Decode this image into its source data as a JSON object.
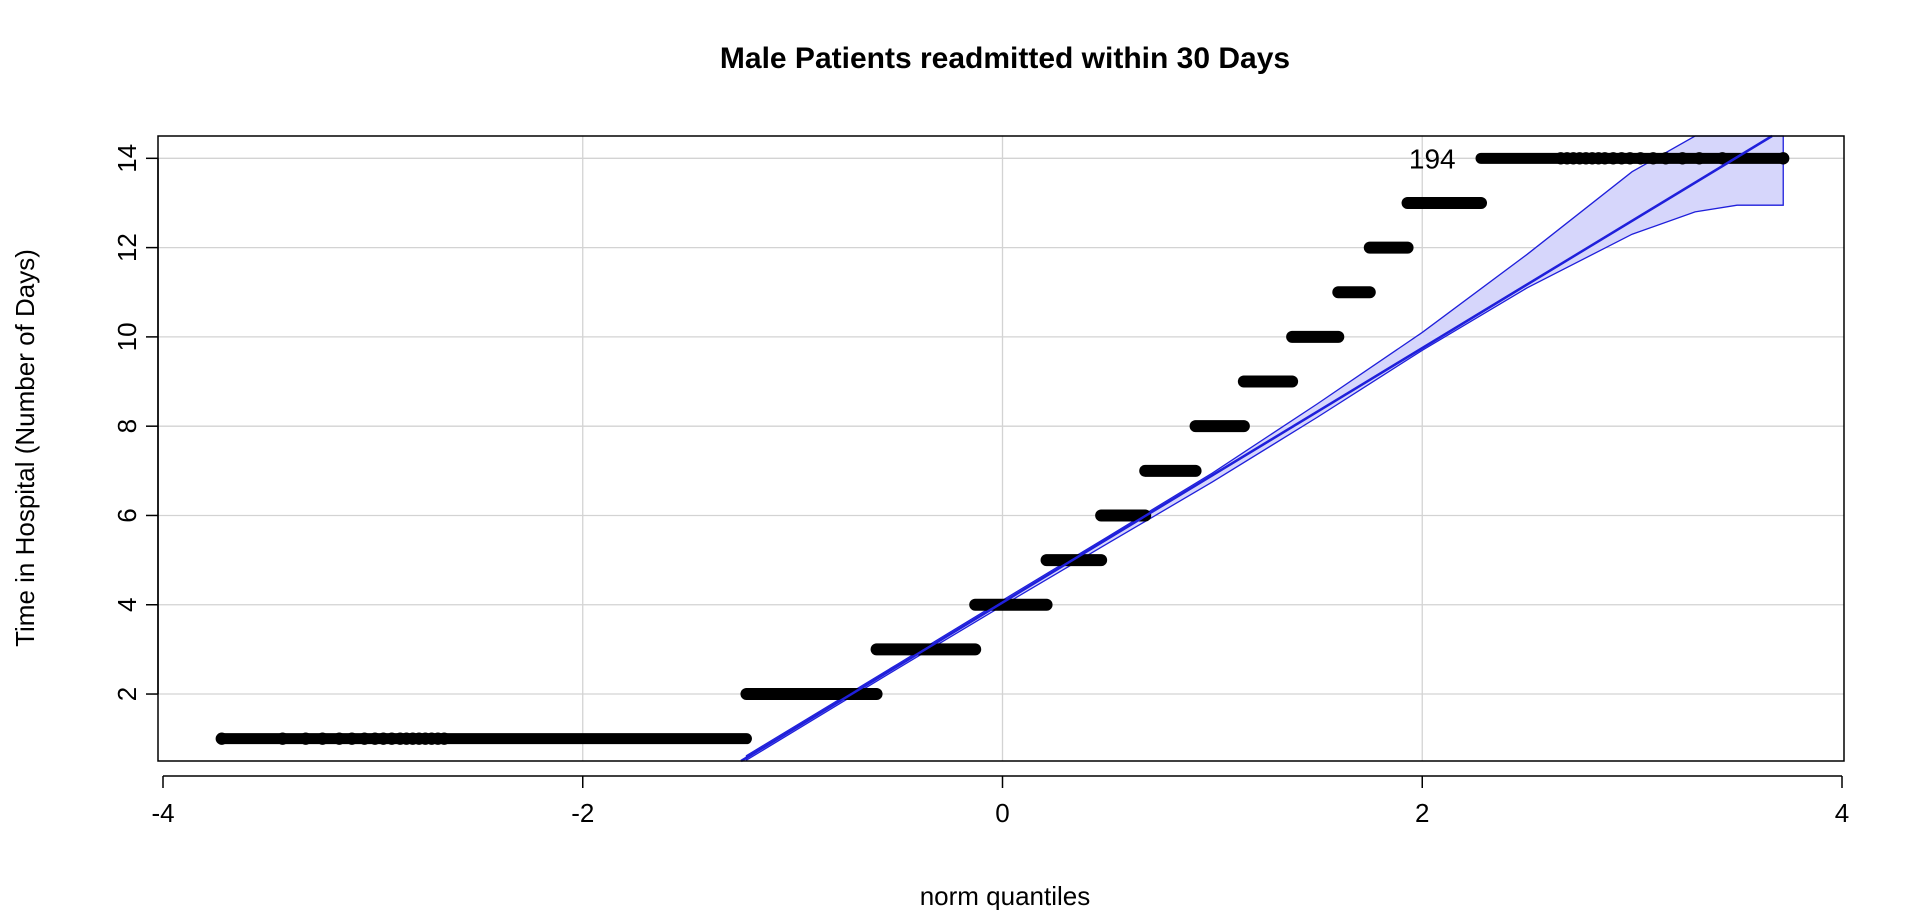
{
  "chart_data": {
    "type": "scatter",
    "subtype": "qq-plot",
    "title": "Male Patients readmitted within 30 Days",
    "xlabel": "norm quantiles",
    "ylabel": "Time in Hospital (Number of Days)",
    "xlim": [
      -4,
      4
    ],
    "ylim": [
      0.5,
      14.5
    ],
    "xticks": [
      -4,
      -2,
      0,
      2,
      4
    ],
    "yticks": [
      2,
      4,
      6,
      8,
      10,
      12,
      14
    ],
    "grid": true,
    "steps": [
      {
        "y": 1,
        "x_from": -3.72,
        "x_to": -1.22
      },
      {
        "y": 2,
        "x_from": -1.22,
        "x_to": -0.6
      },
      {
        "y": 3,
        "x_from": -0.6,
        "x_to": -0.13
      },
      {
        "y": 4,
        "x_from": -0.13,
        "x_to": 0.21
      },
      {
        "y": 5,
        "x_from": 0.21,
        "x_to": 0.47
      },
      {
        "y": 6,
        "x_from": 0.47,
        "x_to": 0.68
      },
      {
        "y": 7,
        "x_from": 0.68,
        "x_to": 0.92
      },
      {
        "y": 8,
        "x_from": 0.92,
        "x_to": 1.15
      },
      {
        "y": 9,
        "x_from": 1.15,
        "x_to": 1.38
      },
      {
        "y": 10,
        "x_from": 1.38,
        "x_to": 1.6
      },
      {
        "y": 11,
        "x_from": 1.6,
        "x_to": 1.75
      },
      {
        "y": 12,
        "x_from": 1.75,
        "x_to": 1.93
      },
      {
        "y": 13,
        "x_from": 1.93,
        "x_to": 2.28
      },
      {
        "y": 14,
        "x_from": 2.28,
        "x_to": 3.72
      }
    ],
    "outlier_points": [
      {
        "x": -3.72,
        "y": 1
      },
      {
        "x": -3.43,
        "y": 1
      },
      {
        "x": -3.32,
        "y": 1
      },
      {
        "x": -3.24,
        "y": 1
      },
      {
        "x": -3.16,
        "y": 1
      },
      {
        "x": -3.1,
        "y": 1
      },
      {
        "x": -3.04,
        "y": 1
      },
      {
        "x": -2.99,
        "y": 1
      },
      {
        "x": -2.95,
        "y": 1
      },
      {
        "x": -2.91,
        "y": 1
      },
      {
        "x": -2.87,
        "y": 1
      },
      {
        "x": -2.84,
        "y": 1
      },
      {
        "x": -2.81,
        "y": 1
      },
      {
        "x": -2.78,
        "y": 1
      },
      {
        "x": -2.75,
        "y": 1
      },
      {
        "x": -2.72,
        "y": 1
      },
      {
        "x": -2.69,
        "y": 1
      },
      {
        "x": -2.66,
        "y": 1
      },
      {
        "x": 2.66,
        "y": 14
      },
      {
        "x": 2.69,
        "y": 14
      },
      {
        "x": 2.72,
        "y": 14
      },
      {
        "x": 2.75,
        "y": 14
      },
      {
        "x": 2.78,
        "y": 14
      },
      {
        "x": 2.81,
        "y": 14
      },
      {
        "x": 2.84,
        "y": 14
      },
      {
        "x": 2.87,
        "y": 14
      },
      {
        "x": 2.91,
        "y": 14
      },
      {
        "x": 2.95,
        "y": 14
      },
      {
        "x": 2.99,
        "y": 14
      },
      {
        "x": 3.04,
        "y": 14
      },
      {
        "x": 3.1,
        "y": 14
      },
      {
        "x": 3.16,
        "y": 14
      },
      {
        "x": 3.24,
        "y": 14
      },
      {
        "x": 3.32,
        "y": 14
      },
      {
        "x": 3.43,
        "y": 14
      },
      {
        "x": 3.72,
        "y": 14
      }
    ],
    "reference_line": {
      "intercept": 4.05,
      "slope": 2.85
    },
    "confidence_band": {
      "x": [
        -1.22,
        -0.5,
        0,
        0.5,
        1.0,
        1.5,
        2.0,
        2.5,
        3.0,
        3.3,
        3.5,
        3.72
      ],
      "lower": [
        0.52,
        2.57,
        3.98,
        5.37,
        6.75,
        8.2,
        9.7,
        11.1,
        12.3,
        12.8,
        12.95,
        12.95
      ],
      "upper": [
        0.62,
        2.67,
        4.1,
        5.52,
        6.95,
        8.5,
        10.1,
        11.85,
        13.7,
        14.5,
        14.5,
        14.5
      ]
    },
    "annotations": [
      {
        "text": "194",
        "x": 2.0,
        "y": 14
      }
    ],
    "colors": {
      "line": "#1f1fdb",
      "band_fill": "#d6d6fb",
      "points": "#000000",
      "grid": "#d3d3d3"
    }
  }
}
